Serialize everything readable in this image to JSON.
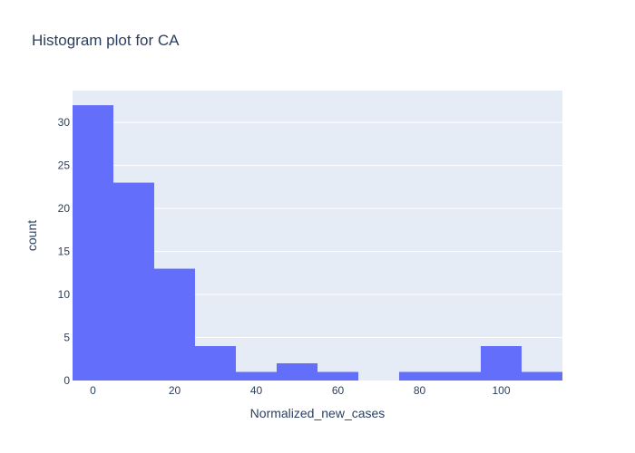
{
  "chart_data": {
    "type": "histogram",
    "title": "Histogram plot for CA",
    "xlabel": "Normalized_new_cases",
    "ylabel": "count",
    "bin_width": 10,
    "bins": [
      {
        "start": -5,
        "end": 5,
        "count": 32
      },
      {
        "start": 5,
        "end": 15,
        "count": 23
      },
      {
        "start": 15,
        "end": 25,
        "count": 13
      },
      {
        "start": 25,
        "end": 35,
        "count": 4
      },
      {
        "start": 35,
        "end": 45,
        "count": 1
      },
      {
        "start": 45,
        "end": 55,
        "count": 2
      },
      {
        "start": 55,
        "end": 65,
        "count": 1
      },
      {
        "start": 65,
        "end": 75,
        "count": 0
      },
      {
        "start": 75,
        "end": 85,
        "count": 1
      },
      {
        "start": 85,
        "end": 95,
        "count": 1
      },
      {
        "start": 95,
        "end": 105,
        "count": 4
      },
      {
        "start": 105,
        "end": 115,
        "count": 1
      }
    ],
    "xlim": [
      -5,
      115
    ],
    "ylim": [
      0,
      33.7
    ],
    "x_ticks": [
      0,
      20,
      40,
      60,
      80,
      100
    ],
    "y_ticks": [
      0,
      5,
      10,
      15,
      20,
      25,
      30
    ],
    "bar_color": "#636efa",
    "plot_bg": "#e5ecf6",
    "grid": true
  }
}
